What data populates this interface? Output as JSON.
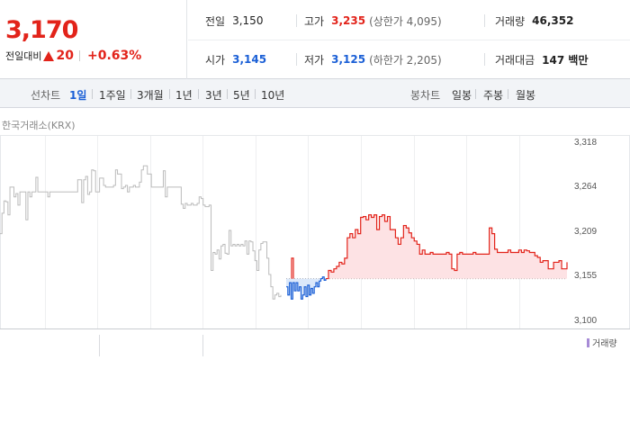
{
  "quote": {
    "price": "3,170",
    "change_label": "전일대비",
    "change_value": "20",
    "change_rate": "+0.63%",
    "prev_label": "전일",
    "prev": "3,150",
    "high_label": "고가",
    "high": "3,235",
    "upper_limit": "(상한가 4,095)",
    "volume_label": "거래량",
    "volume": "46,352",
    "open_label": "시가",
    "open": "3,145",
    "low_label": "저가",
    "low": "3,125",
    "lower_limit": "(하한가 2,205)",
    "amount_label": "거래대금",
    "amount": "147 백만"
  },
  "tabs": {
    "line_title": "선차트",
    "line": [
      "1일",
      "1주일",
      "3개월",
      "1년",
      "3년",
      "5년",
      "10년"
    ],
    "active": "1일",
    "candle_title": "봉차트",
    "candle": [
      "일봉",
      "주봉",
      "월봉"
    ]
  },
  "source_label": "한국거래소(KRX)",
  "volume_legend": "거래량",
  "colors": {
    "up": "#e2231a",
    "down": "#1a5fd6",
    "prev_day": "#bbbbbb"
  },
  "chart_data": {
    "type": "line",
    "ylim": [
      3100,
      3318
    ],
    "y_ticks": [
      "3,318",
      "3,264",
      "3,209",
      "3,155",
      "3,100"
    ],
    "baseline": 3150,
    "series": [
      {
        "values": [
          3205,
          3230,
          3245,
          3244,
          3228,
          3262,
          3262,
          3250,
          3254,
          3240,
          3256,
          3256,
          3256,
          3222,
          3256,
          3250,
          3256,
          3256,
          3274,
          3256,
          3256,
          3256,
          3256,
          3256,
          3250,
          3256,
          3256,
          3256,
          3256,
          3256,
          3256,
          3256,
          3256,
          3256,
          3256,
          3256,
          3256,
          3256,
          3256,
          3271,
          3271,
          3243,
          3271,
          3275,
          3253,
          3256,
          3283,
          3282,
          3256,
          3256,
          3273,
          3273,
          3264,
          3262,
          3262,
          3262,
          3262,
          3264,
          3283,
          3278,
          3278,
          3260,
          3262,
          3264,
          3256,
          3262,
          3262,
          3264,
          3262,
          3262,
          3268,
          3283,
          3288,
          3288,
          3278,
          3278,
          3262,
          3262,
          3262,
          3262,
          3262,
          3262,
          3282,
          3250,
          3262,
          3262,
          3262,
          3262,
          3262,
          3262,
          3262,
          3241,
          3236,
          3242,
          3240,
          3240,
          3242,
          3240,
          3240,
          3242,
          3250,
          3248,
          3240,
          3238,
          3238,
          3240,
          3160,
          3182,
          3180,
          3185,
          3174,
          3190,
          3192,
          3181,
          3180,
          3209,
          3190,
          3192,
          3190,
          3192,
          3190,
          3192,
          3190,
          3196,
          3180,
          3196,
          3195,
          3184,
          3172,
          3160,
          3185,
          3193,
          3195,
          3195,
          3175,
          3155,
          3140,
          3125,
          3130,
          3132,
          3128,
          3130
        ],
        "role": "previous-day"
      },
      {
        "values": [
          3140,
          3130,
          3145,
          3125,
          3145,
          3135,
          3145,
          3135,
          3140,
          3125,
          3130,
          3140,
          3128,
          3142,
          3130,
          3138,
          3132,
          3140,
          3145,
          3140,
          3147,
          3150,
          3152,
          3148,
          3150
        ],
        "role": "below-prev-close"
      },
      {
        "values": [
          3150,
          3160,
          3158,
          3162,
          3165,
          3170,
          3168,
          3175,
          3200,
          3205,
          3200,
          3210,
          3205,
          3225,
          3226,
          3222,
          3228,
          3225,
          3228,
          3210,
          3226,
          3228,
          3220,
          3226,
          3210,
          3210,
          3200,
          3192,
          3200,
          3215,
          3212,
          3206,
          3200,
          3196,
          3192,
          3180,
          3185,
          3180,
          3180,
          3182,
          3180,
          3180,
          3180,
          3180,
          3180,
          3182,
          3180,
          3162,
          3160,
          3180,
          3182,
          3180,
          3180,
          3180,
          3180,
          3182,
          3180,
          3180,
          3180,
          3180,
          3180,
          3212,
          3205,
          3186,
          3182,
          3182,
          3182,
          3182,
          3185,
          3182,
          3182,
          3182,
          3185,
          3182,
          3185,
          3184,
          3182,
          3182,
          3178,
          3176,
          3170,
          3172,
          3172,
          3162,
          3162,
          3170,
          3170,
          3172,
          3162,
          3162,
          3170
        ],
        "role": "above-prev-close"
      }
    ],
    "opening_spike": [
      3175,
      3150
    ]
  }
}
